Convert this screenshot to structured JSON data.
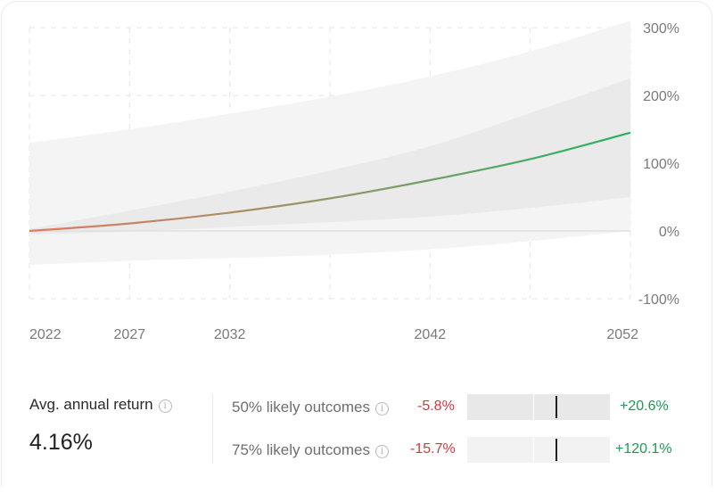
{
  "chart_data": {
    "type": "area",
    "x": [
      2022,
      2027,
      2032,
      2037,
      2042,
      2047,
      2052
    ],
    "x_ticks": [
      "2022",
      "2027",
      "2032",
      "2042",
      "2052"
    ],
    "y_ticks": [
      "300%",
      "200%",
      "100%",
      "0%",
      "-100%"
    ],
    "ylim": [
      -100,
      300
    ],
    "y_unit": "%",
    "series": [
      {
        "role": "median",
        "values": [
          0,
          11,
          27,
          48,
          75,
          106,
          145
        ]
      },
      {
        "role": "band-50-low",
        "values": [
          -5,
          -1,
          6,
          13,
          21,
          34,
          50
        ]
      },
      {
        "role": "band-50-high",
        "values": [
          3,
          30,
          58,
          89,
          125,
          174,
          225
        ]
      },
      {
        "role": "band-75-low",
        "values": [
          -50,
          -44,
          -40,
          -35,
          -27,
          -15,
          0
        ]
      },
      {
        "role": "band-75-high",
        "values": [
          130,
          150,
          173,
          198,
          228,
          265,
          310
        ]
      }
    ],
    "colors": {
      "line_start": "#e07b5e",
      "line_end": "#22b45e",
      "band_outer": "#f4f4f4",
      "band_inner": "#eaeaea",
      "grid": "#e5e5e5",
      "zero": "#e0e0e0"
    },
    "grid": true
  },
  "stats": {
    "avg_label": "Avg. annual return",
    "avg_value": "4.16%",
    "info_glyph": "i",
    "rows": [
      {
        "label": "50% likely outcomes",
        "low": "-5.8%",
        "high": "+20.6%",
        "bar_color": "#e8e8e8",
        "marker": 0.62
      },
      {
        "label": "75% likely outcomes",
        "low": "-15.7%",
        "high": "+120.1%",
        "bar_color": "#f2f2f2",
        "marker": 0.62
      }
    ]
  }
}
